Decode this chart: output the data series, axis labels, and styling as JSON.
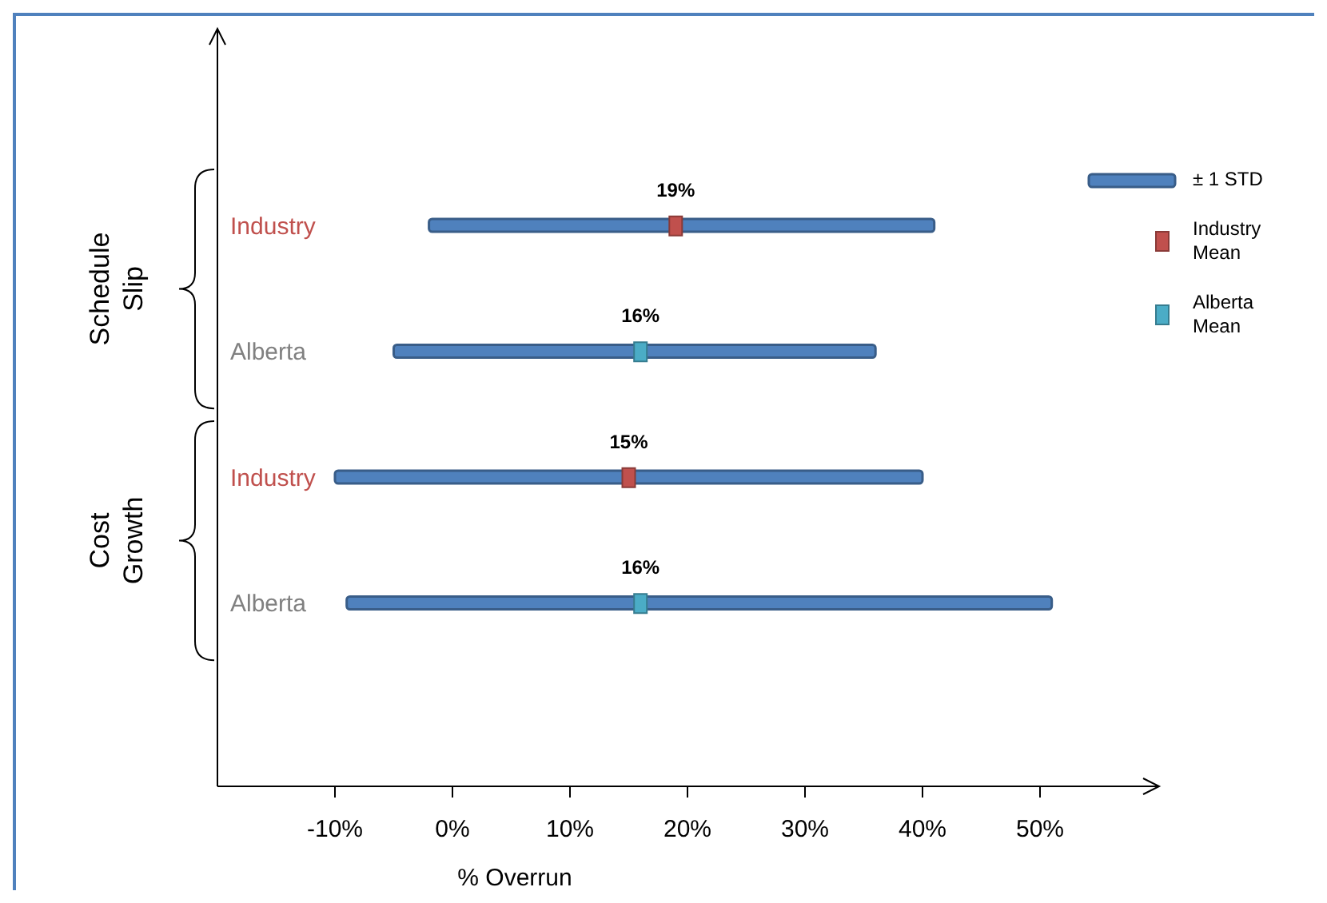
{
  "chart_data": {
    "type": "bar",
    "orientation": "horizontal",
    "xlabel": "% Overrun",
    "categories": [
      "Industry",
      "Alberta",
      "Industry",
      "Alberta"
    ],
    "annotations": [
      "Schedule Slip",
      "Cost Growth"
    ],
    "xlim": [
      -20,
      60
    ],
    "xticks": [
      {
        "value": -10,
        "label": "-10%"
      },
      {
        "value": 0,
        "label": "0%"
      },
      {
        "value": 10,
        "label": "10%"
      },
      {
        "value": 20,
        "label": "20%"
      },
      {
        "value": 30,
        "label": "30%"
      },
      {
        "value": 40,
        "label": "40%"
      },
      {
        "value": 50,
        "label": "50%"
      }
    ],
    "grid": false,
    "legend": "right",
    "series": [
      {
        "name": "± 1 STD",
        "type": "bar",
        "color": "#4f81bd",
        "base": [
          -2,
          -5,
          -10,
          -9
        ],
        "values": [
          43,
          41,
          50,
          60
        ]
      },
      {
        "name": "Industry Mean",
        "type": "scatter",
        "color": "#c0504d",
        "values": [
          19,
          null,
          15,
          null
        ],
        "value_labels": [
          "19%",
          null,
          "15%",
          null
        ]
      },
      {
        "name": "Alberta Mean",
        "type": "scatter",
        "color": "#4bacc6",
        "values": [
          null,
          16,
          null,
          16
        ],
        "value_labels": [
          null,
          "16%",
          null,
          "16%"
        ]
      }
    ]
  }
}
